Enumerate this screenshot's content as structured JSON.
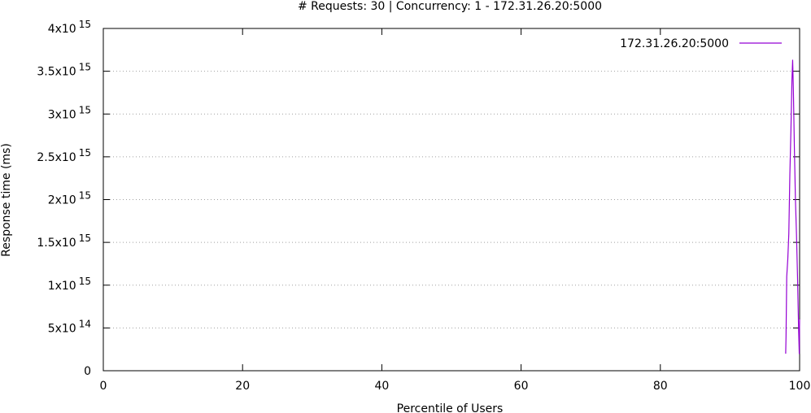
{
  "chart_data": {
    "type": "line",
    "title": "# Requests: 30 | Concurrency: 1 - 172.31.26.20:5000",
    "xlabel": "Percentile of Users",
    "ylabel": "Response time (ms)",
    "xlim": [
      0,
      100
    ],
    "ylim": [
      0,
      4000000000000000.0
    ],
    "grid": "horizontal dotted",
    "legend_position": "top-right",
    "x_ticks": [
      0,
      20,
      40,
      60,
      80,
      100
    ],
    "x_tick_labels": [
      "0",
      "20",
      "40",
      "60",
      "80",
      "100"
    ],
    "y_ticks": [
      {
        "value": 0,
        "mantissa": "0",
        "exponent": ""
      },
      {
        "value": 500000000000000.0,
        "mantissa": "5x10",
        "exponent": "14"
      },
      {
        "value": 1000000000000000.0,
        "mantissa": "1x10",
        "exponent": "15"
      },
      {
        "value": 1500000000000000.0,
        "mantissa": "1.5x10",
        "exponent": "15"
      },
      {
        "value": 2000000000000000.0,
        "mantissa": "2x10",
        "exponent": "15"
      },
      {
        "value": 2500000000000000.0,
        "mantissa": "2.5x10",
        "exponent": "15"
      },
      {
        "value": 3000000000000000.0,
        "mantissa": "3x10",
        "exponent": "15"
      },
      {
        "value": 3500000000000000.0,
        "mantissa": "3.5x10",
        "exponent": "15"
      },
      {
        "value": 4000000000000000.0,
        "mantissa": "4x10",
        "exponent": "15"
      }
    ],
    "series": [
      {
        "name": "172.31.26.20:5000",
        "color": "#9400d3",
        "points": [
          [
            98.0,
            200000000000000.0
          ],
          [
            98.05,
            400000000000000.0
          ],
          [
            98.15,
            1100000000000000.0
          ],
          [
            98.3,
            1300000000000000.0
          ],
          [
            98.45,
            1600000000000000.0
          ],
          [
            98.6,
            2300000000000000.0
          ],
          [
            98.75,
            2800000000000000.0
          ],
          [
            98.9,
            3400000000000000.0
          ],
          [
            99.0,
            3630000000000000.0
          ],
          [
            99.1,
            3300000000000000.0
          ],
          [
            99.25,
            2600000000000000.0
          ],
          [
            99.4,
            2000000000000000.0
          ],
          [
            99.55,
            1600000000000000.0
          ],
          [
            99.7,
            1100000000000000.0
          ],
          [
            99.85,
            500000000000000.0
          ],
          [
            99.95,
            200000000000000.0
          ],
          [
            100.0,
            600000000000000.0
          ]
        ]
      }
    ]
  }
}
